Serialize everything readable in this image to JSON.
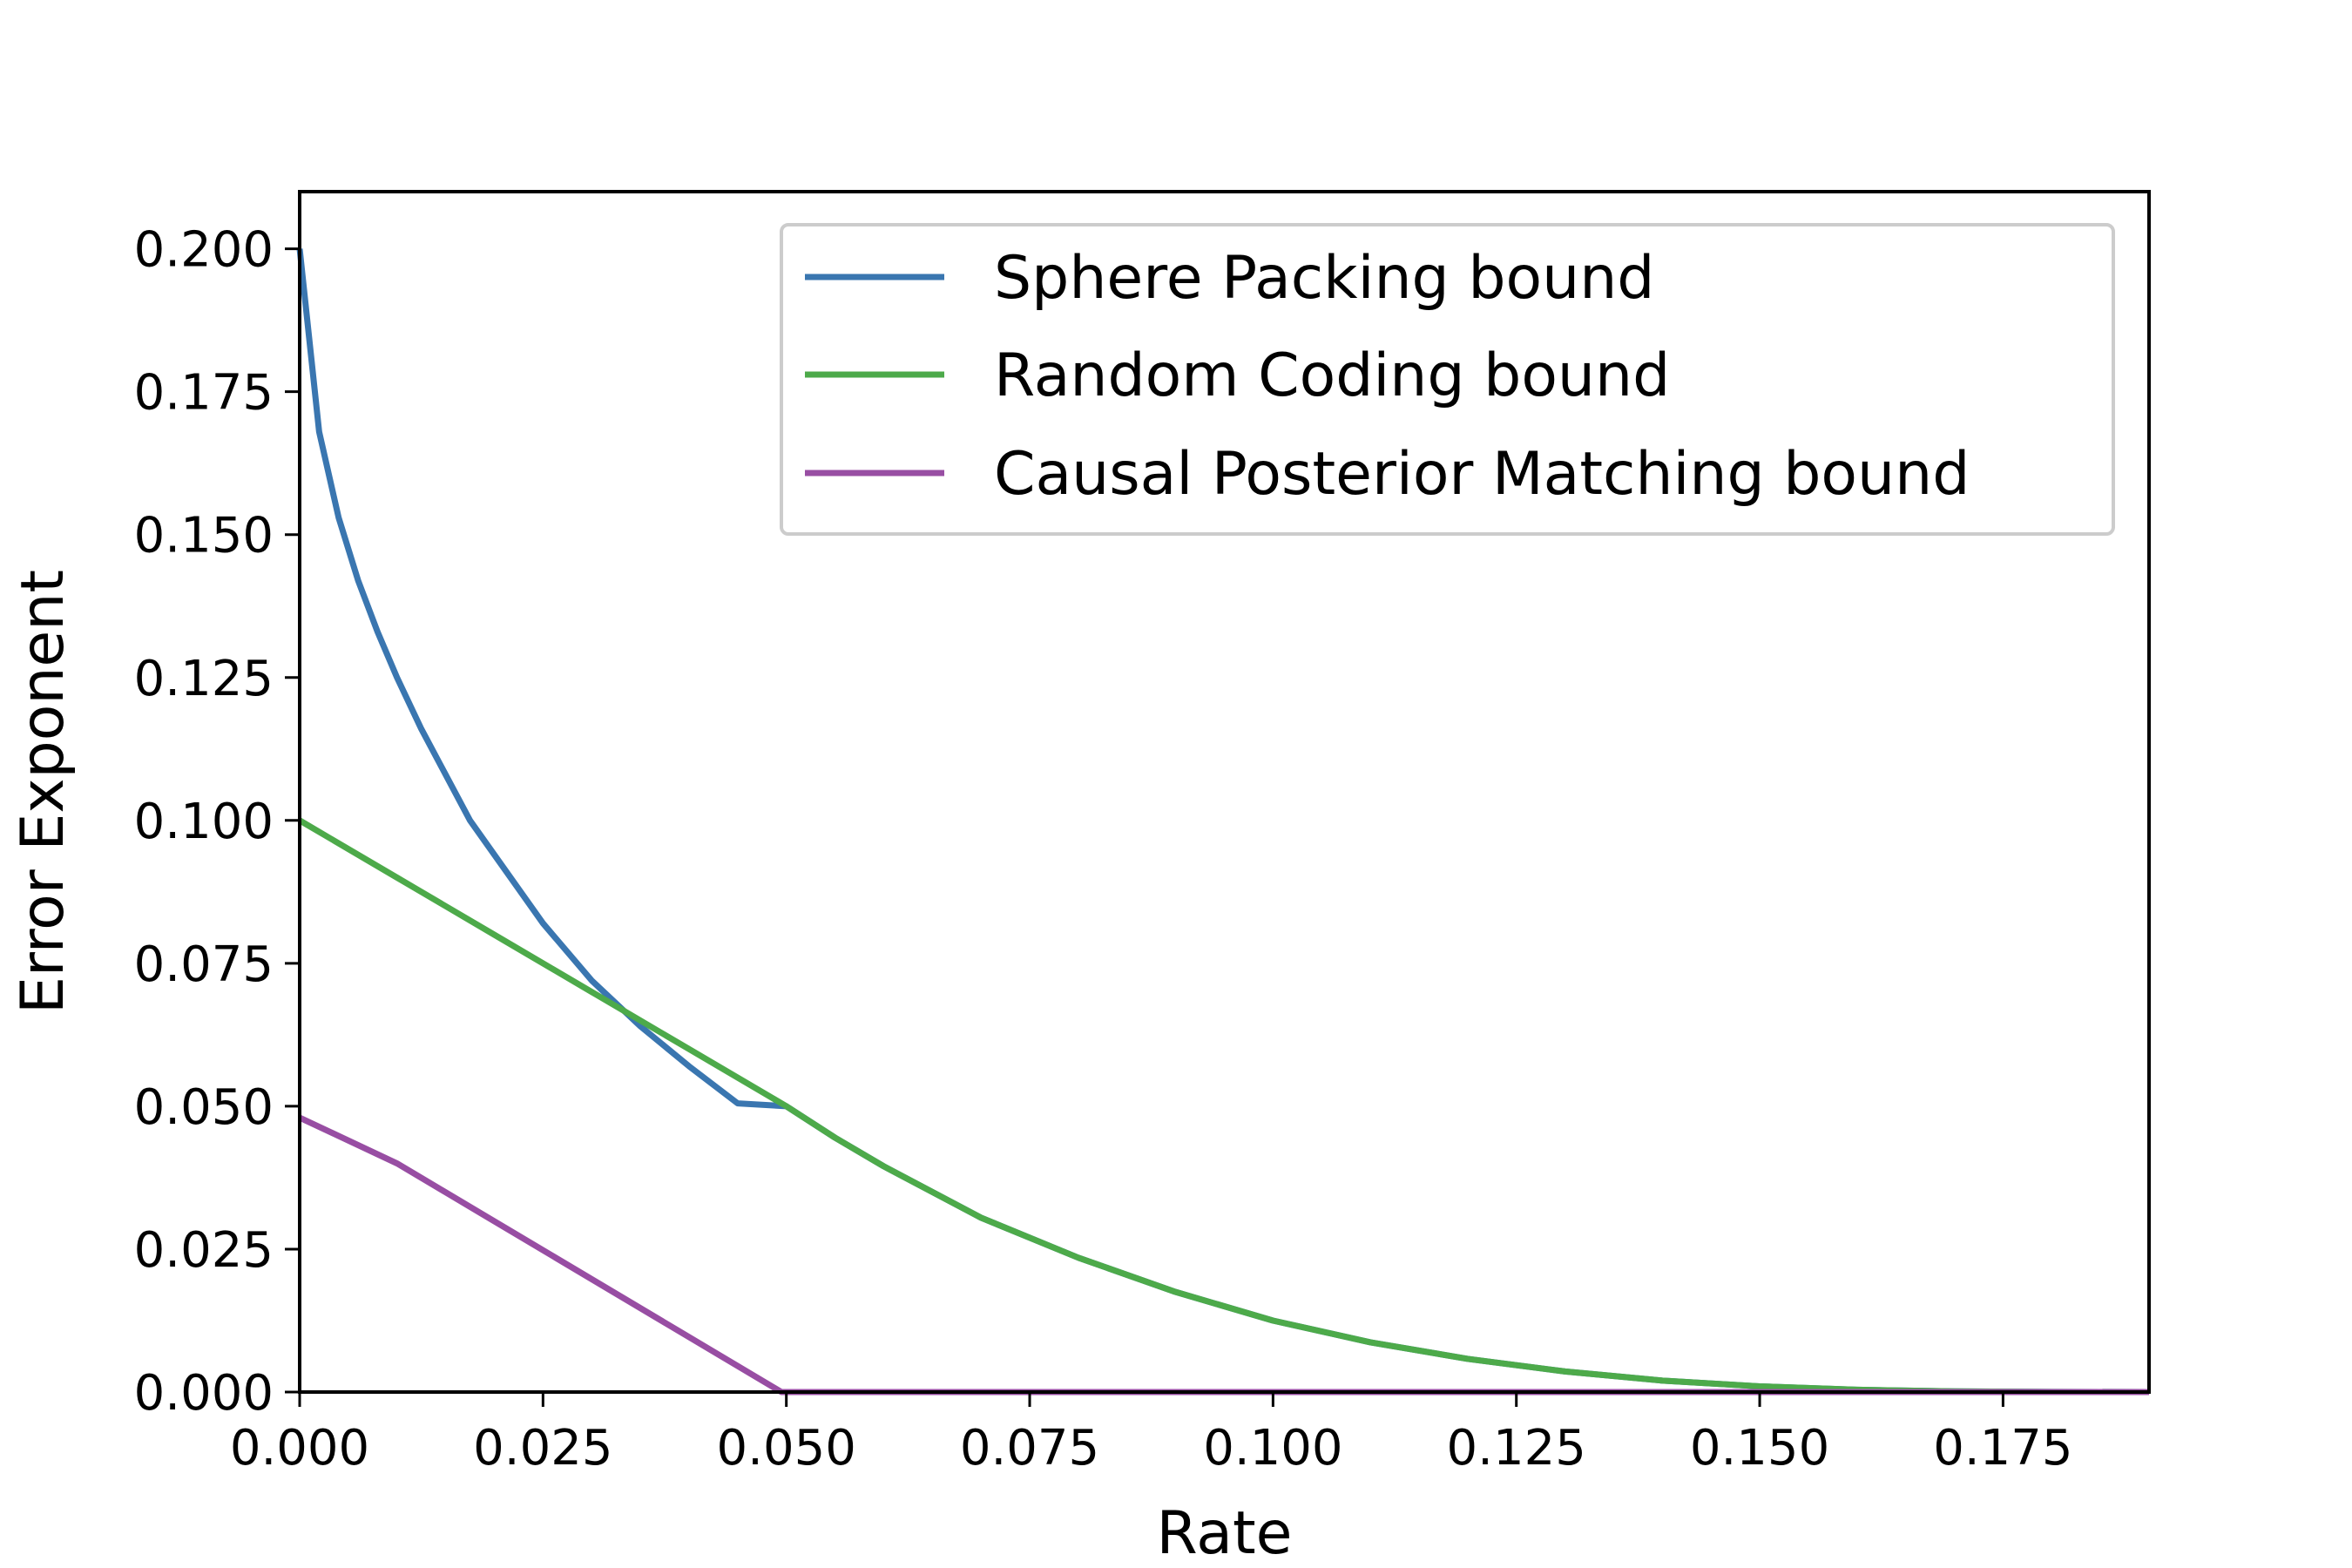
{
  "chart_data": {
    "type": "line",
    "title": "",
    "xlabel": "Rate",
    "ylabel": "Error Exponent",
    "xlim": [
      0,
      0.19
    ],
    "ylim": [
      0,
      0.21
    ],
    "xticks": [
      0.0,
      0.025,
      0.05,
      0.075,
      0.1,
      0.125,
      0.15,
      0.175
    ],
    "xtick_labels": [
      "0.000",
      "0.025",
      "0.050",
      "0.075",
      "0.100",
      "0.125",
      "0.150",
      "0.175"
    ],
    "yticks": [
      0.0,
      0.025,
      0.05,
      0.075,
      0.1,
      0.125,
      0.15,
      0.175,
      0.2
    ],
    "ytick_labels": [
      "0.000",
      "0.025",
      "0.050",
      "0.075",
      "0.100",
      "0.125",
      "0.150",
      "0.175",
      "0.200"
    ],
    "grid": false,
    "legend_position": "top-right",
    "series": [
      {
        "name": "Sphere Packing bound",
        "color": "#3a76b0",
        "x": [
          0.0,
          0.002,
          0.004,
          0.006,
          0.008,
          0.01,
          0.0125,
          0.015,
          0.0175,
          0.02,
          0.025,
          0.03,
          0.035,
          0.04,
          0.045,
          0.05,
          0.055,
          0.06,
          0.07,
          0.08,
          0.09,
          0.1,
          0.11,
          0.12,
          0.13,
          0.14,
          0.15,
          0.16,
          0.17,
          0.18,
          0.19
        ],
        "y": [
          0.2,
          0.168,
          0.153,
          0.142,
          0.133,
          0.125,
          0.116,
          0.108,
          0.1,
          0.094,
          0.082,
          0.072,
          0.064,
          0.057,
          0.0505,
          0.05,
          0.0445,
          0.0395,
          0.0305,
          0.0235,
          0.0175,
          0.0125,
          0.0087,
          0.0058,
          0.0036,
          0.002,
          0.001,
          0.0004,
          0.00012,
          2e-05,
          0.0
        ]
      },
      {
        "name": "Random Coding bound",
        "color": "#4daa4a",
        "x": [
          0.0,
          0.01,
          0.02,
          0.03,
          0.04,
          0.05,
          0.055,
          0.06,
          0.07,
          0.08,
          0.09,
          0.1,
          0.11,
          0.12,
          0.13,
          0.14,
          0.15,
          0.16,
          0.17,
          0.18,
          0.19
        ],
        "y": [
          0.1,
          0.09,
          0.08,
          0.07,
          0.06,
          0.05,
          0.0445,
          0.0395,
          0.0305,
          0.0235,
          0.0175,
          0.0125,
          0.0087,
          0.0058,
          0.0036,
          0.002,
          0.001,
          0.0004,
          0.00012,
          2e-05,
          0.0
        ]
      },
      {
        "name": "Causal Posterior Matching bound",
        "color": "#984ea3",
        "x": [
          0.0,
          0.01,
          0.0495,
          0.19
        ],
        "y": [
          0.048,
          0.04,
          0.0,
          0.0
        ]
      }
    ]
  }
}
